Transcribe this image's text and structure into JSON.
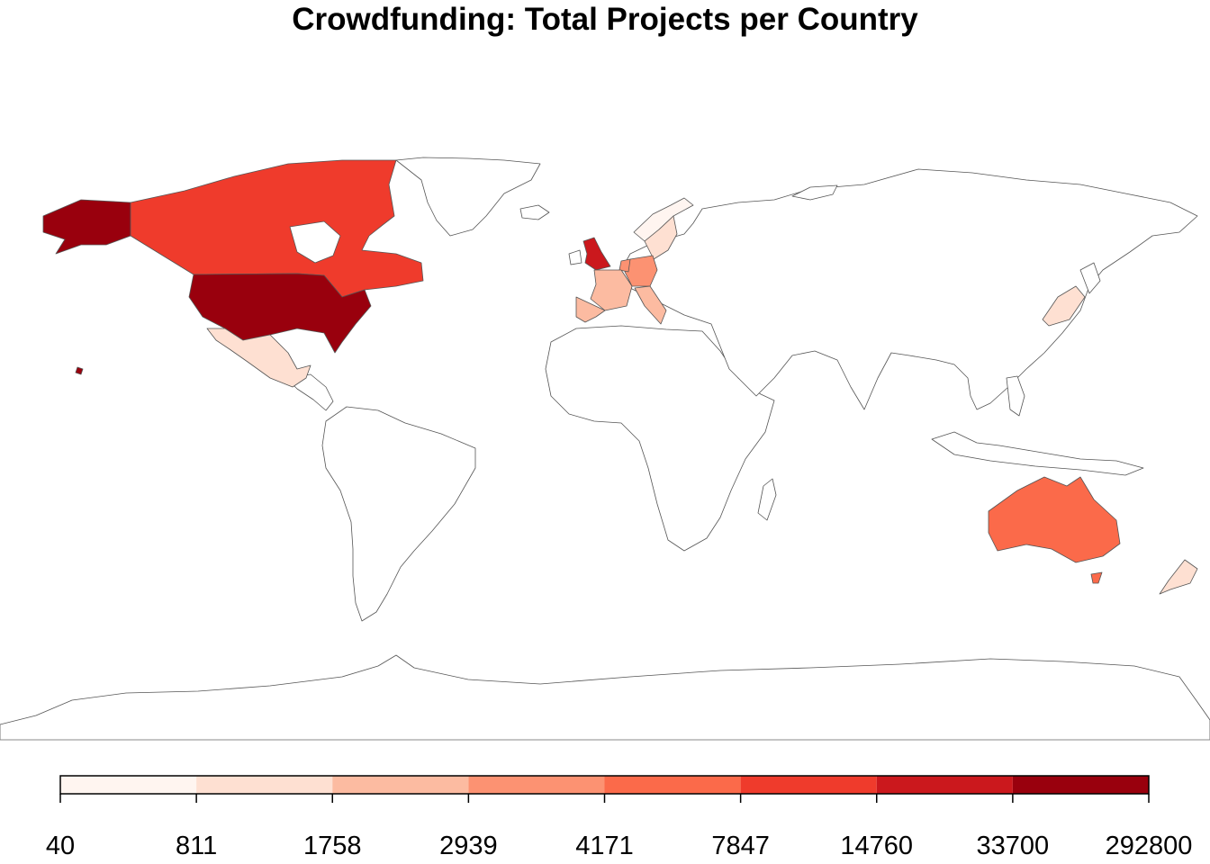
{
  "title": "Crowdfunding: Total Projects per Country",
  "legend": {
    "breaks": [
      "40",
      "811",
      "1758",
      "2939",
      "4171",
      "7847",
      "14760",
      "33700",
      "292800"
    ],
    "colors": [
      "#fff5f0",
      "#fee0d2",
      "#fcbba1",
      "#fc9272",
      "#fb6a4a",
      "#ef3b2c",
      "#cb181d",
      "#99000d"
    ]
  },
  "map_data": {
    "type": "choropleth",
    "value_label": "Total Projects",
    "countries": [
      {
        "name": "United States",
        "bin": 7
      },
      {
        "name": "Alaska (United States)",
        "bin": 7
      },
      {
        "name": "United Kingdom",
        "bin": 6
      },
      {
        "name": "Canada",
        "bin": 5
      },
      {
        "name": "Australia",
        "bin": 4
      },
      {
        "name": "Germany",
        "bin": 3
      },
      {
        "name": "Netherlands",
        "bin": 3
      },
      {
        "name": "France",
        "bin": 2
      },
      {
        "name": "Spain",
        "bin": 2
      },
      {
        "name": "Italy",
        "bin": 2
      },
      {
        "name": "Mexico",
        "bin": 1
      },
      {
        "name": "Sweden",
        "bin": 1
      },
      {
        "name": "New Zealand",
        "bin": 1
      },
      {
        "name": "Japan",
        "bin": 1
      },
      {
        "name": "Norway",
        "bin": 0
      }
    ]
  }
}
